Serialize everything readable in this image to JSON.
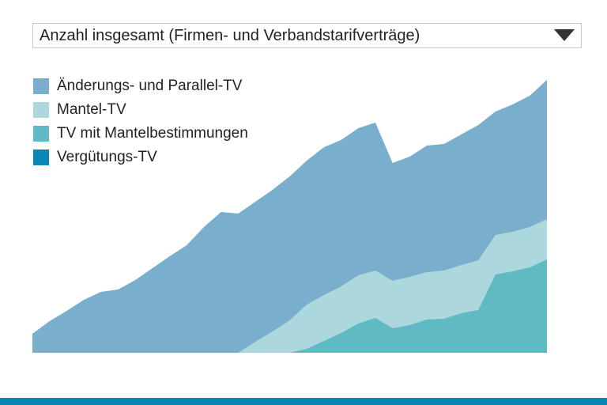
{
  "dropdown": {
    "selected": "Anzahl insgesamt (Firmen- und Verbandstarifverträge)",
    "icon": "caret-down-icon"
  },
  "chart_data": {
    "type": "area",
    "stacked": true,
    "title": "",
    "xlabel": "",
    "ylabel": "",
    "axes_visible": false,
    "grid": false,
    "legend_placement": "top-left",
    "ylim": [
      0,
      345
    ],
    "x": [
      1,
      2,
      3,
      4,
      5,
      6,
      7,
      8,
      9,
      10,
      11,
      12,
      13,
      14,
      15,
      16,
      17,
      18,
      19,
      20,
      21,
      22,
      23,
      24,
      25,
      26,
      27,
      28,
      29,
      30,
      31
    ],
    "series": [
      {
        "name": "Vergütungs-TV",
        "color": "#0a87b4",
        "values": [
          0,
          0,
          0,
          0,
          0,
          0,
          0,
          0,
          0,
          0,
          0,
          0,
          0,
          0,
          0,
          0,
          0,
          0,
          0,
          0,
          0,
          0,
          0,
          0,
          0,
          0,
          0,
          0,
          0,
          0,
          0
        ]
      },
      {
        "name": "TV mit Mantelbestimmungen",
        "color": "#5fbac3",
        "values": [
          0,
          0,
          0,
          0,
          0,
          0,
          0,
          0,
          0,
          0,
          0,
          0,
          0,
          0,
          0,
          0,
          5,
          15,
          25,
          37,
          44,
          31,
          35,
          42,
          43,
          50,
          54,
          99,
          103,
          108,
          118
        ]
      },
      {
        "name": "Mantel-TV",
        "color": "#acd7dc",
        "values": [
          0,
          0,
          0,
          0,
          0,
          0,
          0,
          0,
          0,
          0,
          0,
          0,
          0,
          14,
          27,
          41,
          56,
          58,
          59,
          61,
          60,
          60,
          61,
          60,
          61,
          61,
          63,
          50,
          50,
          51,
          51
        ]
      },
      {
        "name": "Änderungs- und Parallel-TV",
        "color": "#7aaecd",
        "values": [
          24,
          40,
          53,
          67,
          77,
          80,
          92,
          107,
          122,
          136,
          159,
          178,
          176,
          177,
          179,
          182,
          182,
          187,
          185,
          186,
          187,
          149,
          152,
          160,
          160,
          165,
          171,
          156,
          161,
          166,
          176
        ]
      }
    ]
  },
  "legend_order": [
    3,
    2,
    1,
    0
  ],
  "bottom_bar_color": "#0b86b3"
}
